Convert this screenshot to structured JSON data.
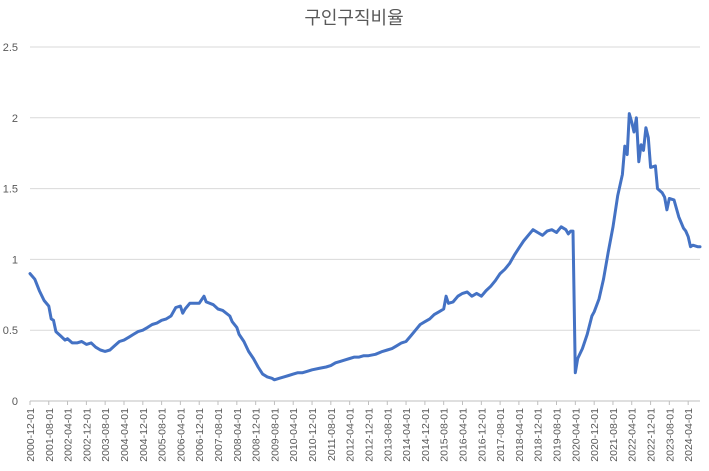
{
  "chart_data": {
    "type": "line",
    "title": "구인구직비율",
    "xlabel": "",
    "ylabel": "",
    "ylim": [
      0,
      2.5
    ],
    "yticks": [
      "0",
      "0.5",
      "1",
      "1.5",
      "2",
      "2.5"
    ],
    "grid": true,
    "legend": "none",
    "x_start": "2000-12-01",
    "x_end": "2024-09-01",
    "x_ticks": [
      "2000-12-01",
      "2001-08-01",
      "2002-04-01",
      "2002-12-01",
      "2003-08-01",
      "2004-04-01",
      "2004-12-01",
      "2005-08-01",
      "2006-04-01",
      "2006-12-01",
      "2007-08-01",
      "2008-04-01",
      "2008-12-01",
      "2009-08-01",
      "2010-04-01",
      "2010-12-01",
      "2011-08-01",
      "2012-04-01",
      "2012-12-01",
      "2013-08-01",
      "2014-04-01",
      "2014-12-01",
      "2015-08-01",
      "2016-04-01",
      "2016-12-01",
      "2017-08-01",
      "2018-04-01",
      "2018-12-01",
      "2019-08-01",
      "2020-04-01",
      "2020-12-01",
      "2021-08-01",
      "2022-04-01",
      "2022-12-01",
      "2023-08-01",
      "2024-04-01"
    ],
    "series": [
      {
        "color": "#4472c4",
        "points": [
          [
            "2000-12-01",
            0.9
          ],
          [
            "2001-02-01",
            0.86
          ],
          [
            "2001-04-01",
            0.78
          ],
          [
            "2001-06-01",
            0.71
          ],
          [
            "2001-08-01",
            0.67
          ],
          [
            "2001-09-01",
            0.58
          ],
          [
            "2001-10-01",
            0.57
          ],
          [
            "2001-11-01",
            0.49
          ],
          [
            "2002-01-01",
            0.46
          ],
          [
            "2002-03-01",
            0.43
          ],
          [
            "2002-04-01",
            0.44
          ],
          [
            "2002-06-01",
            0.41
          ],
          [
            "2002-08-01",
            0.41
          ],
          [
            "2002-10-01",
            0.42
          ],
          [
            "2002-12-01",
            0.4
          ],
          [
            "2003-02-01",
            0.41
          ],
          [
            "2003-04-01",
            0.38
          ],
          [
            "2003-06-01",
            0.36
          ],
          [
            "2003-08-01",
            0.35
          ],
          [
            "2003-10-01",
            0.36
          ],
          [
            "2003-12-01",
            0.39
          ],
          [
            "2004-02-01",
            0.42
          ],
          [
            "2004-04-01",
            0.43
          ],
          [
            "2004-06-01",
            0.45
          ],
          [
            "2004-08-01",
            0.47
          ],
          [
            "2004-10-01",
            0.49
          ],
          [
            "2004-12-01",
            0.5
          ],
          [
            "2005-02-01",
            0.52
          ],
          [
            "2005-04-01",
            0.54
          ],
          [
            "2005-06-01",
            0.55
          ],
          [
            "2005-08-01",
            0.57
          ],
          [
            "2005-10-01",
            0.58
          ],
          [
            "2005-12-01",
            0.6
          ],
          [
            "2006-01-01",
            0.63
          ],
          [
            "2006-02-01",
            0.66
          ],
          [
            "2006-04-01",
            0.67
          ],
          [
            "2006-05-01",
            0.62
          ],
          [
            "2006-06-01",
            0.65
          ],
          [
            "2006-08-01",
            0.69
          ],
          [
            "2006-10-01",
            0.69
          ],
          [
            "2006-12-01",
            0.69
          ],
          [
            "2007-02-01",
            0.74
          ],
          [
            "2007-03-01",
            0.7
          ],
          [
            "2007-06-01",
            0.68
          ],
          [
            "2007-08-01",
            0.65
          ],
          [
            "2007-10-01",
            0.64
          ],
          [
            "2008-01-01",
            0.6
          ],
          [
            "2008-02-01",
            0.56
          ],
          [
            "2008-04-01",
            0.52
          ],
          [
            "2008-05-01",
            0.47
          ],
          [
            "2008-07-01",
            0.42
          ],
          [
            "2008-09-01",
            0.35
          ],
          [
            "2008-11-01",
            0.3
          ],
          [
            "2009-01-01",
            0.24
          ],
          [
            "2009-03-01",
            0.19
          ],
          [
            "2009-05-01",
            0.17
          ],
          [
            "2009-07-01",
            0.16
          ],
          [
            "2009-08-01",
            0.15
          ],
          [
            "2009-10-01",
            0.16
          ],
          [
            "2009-12-01",
            0.17
          ],
          [
            "2010-02-01",
            0.18
          ],
          [
            "2010-04-01",
            0.19
          ],
          [
            "2010-06-01",
            0.2
          ],
          [
            "2010-08-01",
            0.2
          ],
          [
            "2010-10-01",
            0.21
          ],
          [
            "2010-12-01",
            0.22
          ],
          [
            "2011-03-01",
            0.23
          ],
          [
            "2011-06-01",
            0.24
          ],
          [
            "2011-08-01",
            0.25
          ],
          [
            "2011-10-01",
            0.27
          ],
          [
            "2011-12-01",
            0.28
          ],
          [
            "2012-02-01",
            0.29
          ],
          [
            "2012-04-01",
            0.3
          ],
          [
            "2012-06-01",
            0.31
          ],
          [
            "2012-08-01",
            0.31
          ],
          [
            "2012-10-01",
            0.32
          ],
          [
            "2012-12-01",
            0.32
          ],
          [
            "2013-03-01",
            0.33
          ],
          [
            "2013-06-01",
            0.35
          ],
          [
            "2013-08-01",
            0.36
          ],
          [
            "2013-10-01",
            0.37
          ],
          [
            "2013-12-01",
            0.39
          ],
          [
            "2014-02-01",
            0.41
          ],
          [
            "2014-04-01",
            0.42
          ],
          [
            "2014-06-01",
            0.46
          ],
          [
            "2014-08-01",
            0.5
          ],
          [
            "2014-10-01",
            0.54
          ],
          [
            "2014-12-01",
            0.56
          ],
          [
            "2015-02-01",
            0.58
          ],
          [
            "2015-04-01",
            0.61
          ],
          [
            "2015-06-01",
            0.63
          ],
          [
            "2015-08-01",
            0.65
          ],
          [
            "2015-09-01",
            0.74
          ],
          [
            "2015-10-01",
            0.69
          ],
          [
            "2015-12-01",
            0.7
          ],
          [
            "2016-02-01",
            0.74
          ],
          [
            "2016-04-01",
            0.76
          ],
          [
            "2016-06-01",
            0.77
          ],
          [
            "2016-08-01",
            0.74
          ],
          [
            "2016-10-01",
            0.76
          ],
          [
            "2016-12-01",
            0.74
          ],
          [
            "2017-02-01",
            0.78
          ],
          [
            "2017-04-01",
            0.81
          ],
          [
            "2017-06-01",
            0.85
          ],
          [
            "2017-08-01",
            0.9
          ],
          [
            "2017-10-01",
            0.93
          ],
          [
            "2017-12-01",
            0.97
          ],
          [
            "2018-02-01",
            1.03
          ],
          [
            "2018-04-01",
            1.08
          ],
          [
            "2018-06-01",
            1.13
          ],
          [
            "2018-08-01",
            1.17
          ],
          [
            "2018-10-01",
            1.21
          ],
          [
            "2018-12-01",
            1.19
          ],
          [
            "2019-02-01",
            1.17
          ],
          [
            "2019-04-01",
            1.2
          ],
          [
            "2019-06-01",
            1.21
          ],
          [
            "2019-08-01",
            1.19
          ],
          [
            "2019-10-01",
            1.23
          ],
          [
            "2019-12-01",
            1.21
          ],
          [
            "2020-01-01",
            1.18
          ],
          [
            "2020-02-01",
            1.2
          ],
          [
            "2020-03-01",
            1.2
          ],
          [
            "2020-04-01",
            0.2
          ],
          [
            "2020-05-01",
            0.3
          ],
          [
            "2020-07-01",
            0.37
          ],
          [
            "2020-09-01",
            0.47
          ],
          [
            "2020-11-01",
            0.6
          ],
          [
            "2020-12-01",
            0.63
          ],
          [
            "2021-02-01",
            0.72
          ],
          [
            "2021-04-01",
            0.86
          ],
          [
            "2021-06-01",
            1.05
          ],
          [
            "2021-08-01",
            1.23
          ],
          [
            "2021-10-01",
            1.45
          ],
          [
            "2021-12-01",
            1.6
          ],
          [
            "2022-01-01",
            1.8
          ],
          [
            "2022-02-01",
            1.74
          ],
          [
            "2022-03-01",
            2.03
          ],
          [
            "2022-04-01",
            1.97
          ],
          [
            "2022-05-01",
            1.9
          ],
          [
            "2022-06-01",
            2.0
          ],
          [
            "2022-07-01",
            1.69
          ],
          [
            "2022-08-01",
            1.81
          ],
          [
            "2022-09-01",
            1.77
          ],
          [
            "2022-10-01",
            1.93
          ],
          [
            "2022-11-01",
            1.86
          ],
          [
            "2022-12-01",
            1.65
          ],
          [
            "2023-02-01",
            1.66
          ],
          [
            "2023-03-01",
            1.5
          ],
          [
            "2023-05-01",
            1.47
          ],
          [
            "2023-06-01",
            1.44
          ],
          [
            "2023-07-01",
            1.35
          ],
          [
            "2023-08-01",
            1.43
          ],
          [
            "2023-10-01",
            1.42
          ],
          [
            "2023-12-01",
            1.3
          ],
          [
            "2024-02-01",
            1.22
          ],
          [
            "2024-03-01",
            1.2
          ],
          [
            "2024-04-01",
            1.16
          ],
          [
            "2024-05-01",
            1.09
          ],
          [
            "2024-06-01",
            1.1
          ],
          [
            "2024-08-01",
            1.09
          ],
          [
            "2024-09-01",
            1.09
          ]
        ]
      }
    ]
  }
}
